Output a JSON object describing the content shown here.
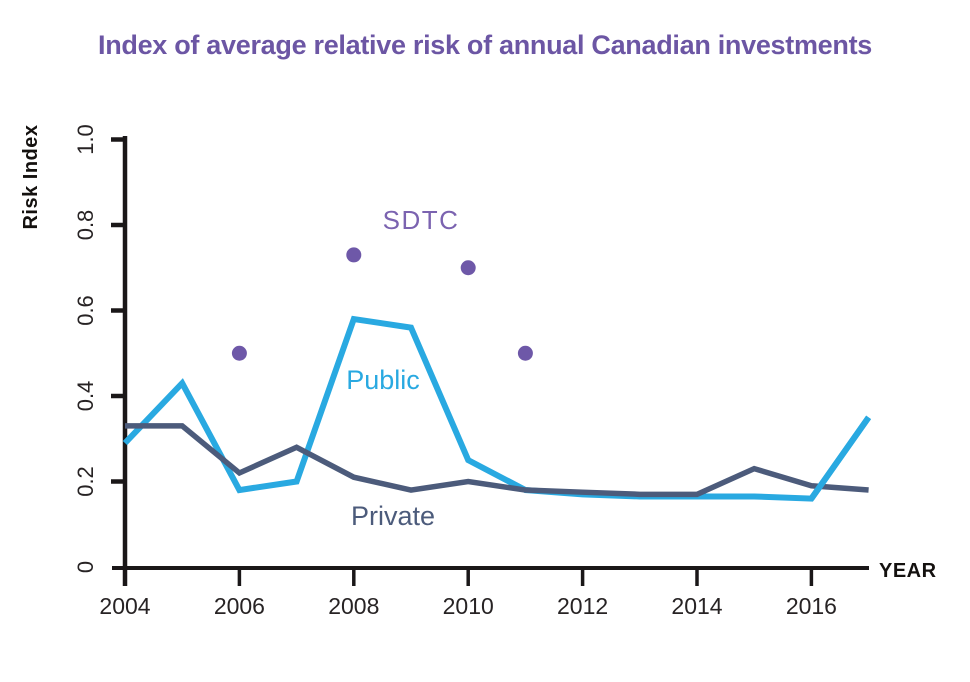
{
  "title": "Index of average relative risk of annual Canadian investments",
  "colors": {
    "title": "#6c56a4",
    "public": "#29a9e1",
    "private": "#4c5b7b",
    "sdtc": "#6e58a8",
    "sdtc_label": "#7b63b0",
    "axis": "#1a1718"
  },
  "chart_data": {
    "type": "line",
    "title": "Index of average relative risk of annual Canadian investments",
    "xlabel": "YEAR",
    "ylabel": "Risk Index",
    "x": [
      2004,
      2005,
      2006,
      2007,
      2008,
      2009,
      2010,
      2011,
      2012,
      2013,
      2014,
      2015,
      2016,
      2017
    ],
    "series": [
      {
        "name": "Public",
        "label": "Public",
        "values": [
          0.29,
          0.43,
          0.18,
          0.2,
          0.58,
          0.56,
          0.25,
          0.18,
          0.17,
          0.165,
          0.165,
          0.165,
          0.16,
          0.35
        ]
      },
      {
        "name": "Private",
        "label": "Private",
        "values": [
          0.33,
          0.33,
          0.22,
          0.28,
          0.21,
          0.18,
          0.2,
          0.18,
          0.175,
          0.17,
          0.17,
          0.23,
          0.19,
          0.18
        ]
      }
    ],
    "scatter": {
      "name": "SDTC",
      "points": [
        [
          2006,
          0.5
        ],
        [
          2008,
          0.73
        ],
        [
          2010,
          0.7
        ],
        [
          2011,
          0.5
        ]
      ]
    },
    "x_ticks": [
      "2004",
      "2006",
      "2008",
      "2010",
      "2012",
      "2014",
      "2016"
    ],
    "y_ticks": [
      "0",
      "0.2",
      "0.4",
      "0.6",
      "0.8",
      "1.0"
    ],
    "xlim": [
      2004,
      2017
    ],
    "ylim": [
      0,
      1.0
    ],
    "grid": false,
    "legend": "inline-annotations"
  }
}
